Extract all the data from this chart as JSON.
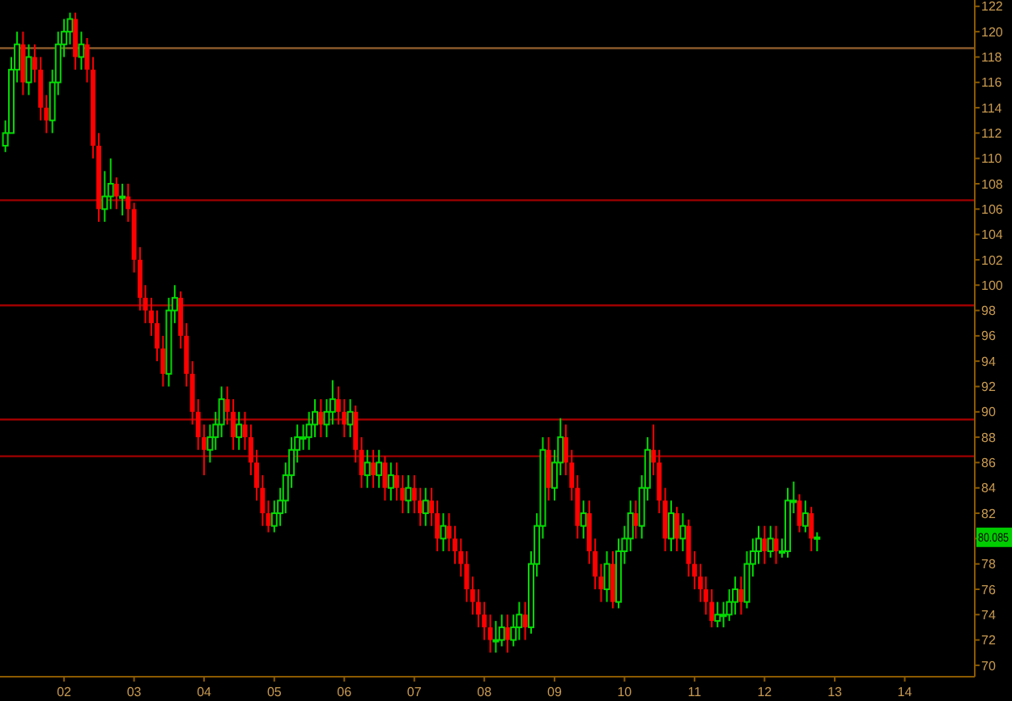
{
  "chart_data": {
    "type": "candlestick",
    "x": [
      "2001-03",
      "2001-04",
      "2001-05",
      "2001-06",
      "2001-07",
      "2001-08",
      "2001-09",
      "2001-10",
      "2001-11",
      "2001-12",
      "2002-01",
      "2002-02",
      "2002-03",
      "2002-04",
      "2002-05",
      "2002-06",
      "2002-07",
      "2002-08",
      "2002-09",
      "2002-10",
      "2002-11",
      "2002-12",
      "2003-01",
      "2003-02",
      "2003-03",
      "2003-04",
      "2003-05",
      "2003-06",
      "2003-07",
      "2003-08",
      "2003-09",
      "2003-10",
      "2003-11",
      "2003-12",
      "2004-01",
      "2004-02",
      "2004-03",
      "2004-04",
      "2004-05",
      "2004-06",
      "2004-07",
      "2004-08",
      "2004-09",
      "2004-10",
      "2004-11",
      "2004-12",
      "2005-01",
      "2005-02",
      "2005-03",
      "2005-04",
      "2005-05",
      "2005-06",
      "2005-07",
      "2005-08",
      "2005-09",
      "2005-10",
      "2005-11",
      "2005-12",
      "2006-01",
      "2006-02",
      "2006-03",
      "2006-04",
      "2006-05",
      "2006-06",
      "2006-07",
      "2006-08",
      "2006-09",
      "2006-10",
      "2006-11",
      "2006-12",
      "2007-01",
      "2007-02",
      "2007-03",
      "2007-04",
      "2007-05",
      "2007-06",
      "2007-07",
      "2007-08",
      "2007-09",
      "2007-10",
      "2007-11",
      "2007-12",
      "2008-01",
      "2008-02",
      "2008-03",
      "2008-04",
      "2008-05",
      "2008-06",
      "2008-07",
      "2008-08",
      "2008-09",
      "2008-10",
      "2008-11",
      "2008-12",
      "2009-01",
      "2009-02",
      "2009-03",
      "2009-04",
      "2009-05",
      "2009-06",
      "2009-07",
      "2009-08",
      "2009-09",
      "2009-10",
      "2009-11",
      "2009-12",
      "2010-01",
      "2010-02",
      "2010-03",
      "2010-04",
      "2010-05",
      "2010-06",
      "2010-07",
      "2010-08",
      "2010-09",
      "2010-10",
      "2010-11",
      "2010-12",
      "2011-01",
      "2011-02",
      "2011-03",
      "2011-04",
      "2011-05",
      "2011-06",
      "2011-07",
      "2011-08",
      "2011-09",
      "2011-10",
      "2011-11",
      "2011-12",
      "2012-01",
      "2012-02",
      "2012-03",
      "2012-04",
      "2012-05",
      "2012-06",
      "2012-07",
      "2012-08",
      "2012-09",
      "2012-10"
    ],
    "ohlc": [
      [
        111,
        113,
        110.5,
        112
      ],
      [
        112,
        118,
        112,
        117
      ],
      [
        117,
        120,
        116,
        119
      ],
      [
        119,
        120,
        115,
        116
      ],
      [
        116,
        119,
        115,
        118
      ],
      [
        118,
        119,
        116,
        117
      ],
      [
        117,
        118,
        113,
        114
      ],
      [
        114,
        115,
        112,
        113
      ],
      [
        113,
        117,
        112,
        116
      ],
      [
        116,
        120,
        115,
        119
      ],
      [
        119,
        121,
        118,
        120
      ],
      [
        120,
        121.5,
        119,
        121
      ],
      [
        121,
        121.5,
        117,
        118
      ],
      [
        118,
        120,
        117,
        119
      ],
      [
        119,
        119.5,
        116,
        117
      ],
      [
        117,
        118,
        110,
        111
      ],
      [
        111,
        112,
        105,
        106
      ],
      [
        106,
        109,
        105,
        107
      ],
      [
        107,
        110,
        106,
        108
      ],
      [
        108,
        108.5,
        106,
        107
      ],
      [
        107,
        108,
        105.5,
        107
      ],
      [
        107,
        108,
        105,
        106
      ],
      [
        106,
        106.5,
        101,
        102
      ],
      [
        102,
        103,
        98,
        99
      ],
      [
        99,
        100,
        97,
        98
      ],
      [
        98,
        99,
        96,
        97
      ],
      [
        97,
        98,
        94,
        95
      ],
      [
        95,
        96,
        92,
        93
      ],
      [
        93,
        99,
        92,
        98
      ],
      [
        98,
        100,
        97,
        99
      ],
      [
        99,
        99.5,
        95,
        96
      ],
      [
        96,
        97,
        92,
        93
      ],
      [
        93,
        94,
        89,
        90
      ],
      [
        90,
        91,
        87,
        88
      ],
      [
        88,
        89,
        85,
        87
      ],
      [
        87,
        89,
        86,
        88
      ],
      [
        88,
        90,
        87,
        89
      ],
      [
        89,
        92,
        88,
        91
      ],
      [
        91,
        92,
        89,
        90
      ],
      [
        90,
        91,
        87,
        88
      ],
      [
        88,
        90,
        87,
        89
      ],
      [
        89,
        90,
        87,
        88
      ],
      [
        88,
        89,
        85,
        86
      ],
      [
        86,
        87,
        83,
        84
      ],
      [
        84,
        85,
        81,
        82
      ],
      [
        82,
        83,
        80.5,
        81
      ],
      [
        81,
        83,
        80.5,
        82
      ],
      [
        82,
        84,
        81,
        83
      ],
      [
        83,
        86,
        82,
        85
      ],
      [
        85,
        88,
        84,
        87
      ],
      [
        87,
        89,
        86,
        88
      ],
      [
        88,
        89,
        87,
        88
      ],
      [
        88,
        90,
        87,
        89
      ],
      [
        89,
        91,
        88,
        90
      ],
      [
        90,
        91,
        88,
        89
      ],
      [
        89,
        91,
        88,
        90
      ],
      [
        90,
        92.5,
        89,
        91
      ],
      [
        91,
        92,
        89,
        90
      ],
      [
        90,
        91,
        88,
        89
      ],
      [
        89,
        91,
        88,
        90
      ],
      [
        90,
        90.5,
        86,
        87
      ],
      [
        87,
        88,
        84,
        85
      ],
      [
        85,
        87,
        84,
        86
      ],
      [
        86,
        87,
        84,
        85
      ],
      [
        85,
        87,
        84,
        86
      ],
      [
        86,
        86.5,
        83,
        84
      ],
      [
        84,
        86,
        83,
        85
      ],
      [
        85,
        86,
        83,
        84
      ],
      [
        84,
        85,
        82,
        83
      ],
      [
        83,
        85,
        82,
        84
      ],
      [
        84,
        85,
        82,
        83
      ],
      [
        83,
        84,
        81,
        82
      ],
      [
        82,
        84,
        81,
        83
      ],
      [
        83,
        84,
        81,
        82
      ],
      [
        82,
        83,
        79,
        80
      ],
      [
        80,
        82,
        79,
        81
      ],
      [
        81,
        82,
        79,
        80
      ],
      [
        80,
        81,
        78,
        79
      ],
      [
        79,
        80,
        77,
        78
      ],
      [
        78,
        79,
        75,
        76
      ],
      [
        76,
        77,
        74,
        75
      ],
      [
        75,
        76,
        73,
        74
      ],
      [
        74,
        75,
        72,
        73
      ],
      [
        73,
        74,
        71,
        72
      ],
      [
        72,
        73.5,
        71,
        72
      ],
      [
        72,
        74,
        71.5,
        73
      ],
      [
        73,
        74,
        71,
        72
      ],
      [
        72,
        74,
        71.5,
        73
      ],
      [
        73,
        75,
        72,
        74
      ],
      [
        74,
        75,
        72,
        73
      ],
      [
        73,
        79,
        72.5,
        78
      ],
      [
        78,
        82,
        77,
        81
      ],
      [
        81,
        88,
        80,
        87
      ],
      [
        87,
        88,
        83,
        84
      ],
      [
        84,
        87,
        83,
        86
      ],
      [
        86,
        89.5,
        85,
        88
      ],
      [
        88,
        89,
        85,
        86
      ],
      [
        86,
        87,
        83,
        84
      ],
      [
        84,
        85,
        80,
        81
      ],
      [
        81,
        83,
        80,
        82
      ],
      [
        82,
        83,
        78,
        79
      ],
      [
        79,
        80,
        76,
        77
      ],
      [
        77,
        78,
        75,
        76
      ],
      [
        76,
        79,
        75,
        78
      ],
      [
        78,
        79,
        74.5,
        75
      ],
      [
        75,
        80,
        74.5,
        79
      ],
      [
        79,
        81,
        78,
        80
      ],
      [
        80,
        83,
        79,
        82
      ],
      [
        82,
        83,
        80,
        81
      ],
      [
        81,
        85,
        80,
        84
      ],
      [
        84,
        88,
        83,
        87
      ],
      [
        87,
        89,
        85,
        86
      ],
      [
        86,
        87,
        82,
        83
      ],
      [
        83,
        84,
        79,
        80
      ],
      [
        80,
        83,
        79,
        82
      ],
      [
        82,
        82.5,
        79,
        80
      ],
      [
        80,
        82,
        79,
        81
      ],
      [
        81,
        81.5,
        77,
        78
      ],
      [
        78,
        79,
        76,
        77
      ],
      [
        77,
        78,
        75,
        76
      ],
      [
        76,
        77,
        74,
        75
      ],
      [
        75,
        76,
        73,
        73.5
      ],
      [
        73.5,
        75,
        73,
        74
      ],
      [
        74,
        75,
        73,
        74
      ],
      [
        74,
        76,
        73.5,
        75
      ],
      [
        75,
        77,
        74,
        76
      ],
      [
        76,
        77,
        74,
        75
      ],
      [
        75,
        79,
        74.5,
        78
      ],
      [
        78,
        80,
        77,
        79
      ],
      [
        79,
        81,
        78,
        80
      ],
      [
        80,
        81,
        78,
        79
      ],
      [
        79,
        81,
        78.5,
        80
      ],
      [
        80,
        81,
        78,
        79
      ],
      [
        79,
        80,
        78.5,
        79
      ],
      [
        79,
        84,
        78.5,
        83
      ],
      [
        83,
        84.5,
        82,
        83
      ],
      [
        83,
        83.5,
        80.5,
        81
      ],
      [
        81,
        83,
        80.5,
        82
      ],
      [
        82,
        82.5,
        79,
        80
      ],
      [
        80,
        80.5,
        79,
        80.1
      ]
    ],
    "xlim": [
      "2001-02",
      "2015-01"
    ],
    "xticks": [
      {
        "value": "2002",
        "label": "02"
      },
      {
        "value": "2003",
        "label": "03"
      },
      {
        "value": "2004",
        "label": "04"
      },
      {
        "value": "2005",
        "label": "05"
      },
      {
        "value": "2006",
        "label": "06"
      },
      {
        "value": "2007",
        "label": "07"
      },
      {
        "value": "2008",
        "label": "08"
      },
      {
        "value": "2009",
        "label": "09"
      },
      {
        "value": "2010",
        "label": "10"
      },
      {
        "value": "2011",
        "label": "11"
      },
      {
        "value": "2012",
        "label": "12"
      },
      {
        "value": "2013",
        "label": "13"
      },
      {
        "value": "2014",
        "label": "14"
      }
    ],
    "ylim": [
      69.1,
      122.5
    ],
    "yticks": [
      70,
      72,
      74,
      76,
      78,
      {
        "value": 80,
        "label": null
      },
      82,
      84,
      86,
      88,
      90,
      92,
      94,
      96,
      98,
      100,
      102,
      104,
      106,
      108,
      110,
      112,
      114,
      116,
      118,
      120,
      122
    ],
    "ref_lines": [
      {
        "axis": "y",
        "value": 118.7,
        "color": "#8b5a2b"
      },
      {
        "axis": "y",
        "value": 106.7,
        "color": "#a00000"
      },
      {
        "axis": "y",
        "value": 98.4,
        "color": "#a00000"
      },
      {
        "axis": "y",
        "value": 89.4,
        "color": "#a00000"
      },
      {
        "axis": "y",
        "value": 86.5,
        "color": "#a00000"
      }
    ],
    "annotations": [
      "80.085"
    ],
    "grid": false
  }
}
